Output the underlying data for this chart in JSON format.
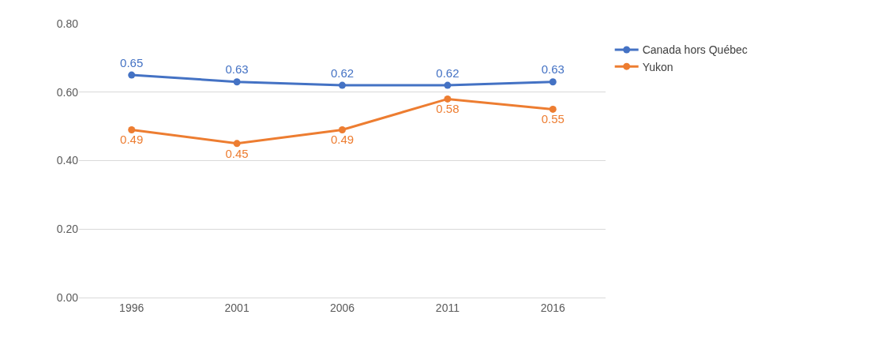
{
  "chart_data": {
    "type": "line",
    "categories": [
      "1996",
      "2001",
      "2006",
      "2011",
      "2016"
    ],
    "series": [
      {
        "name": "Canada hors Québec",
        "color": "#4472c4",
        "values": [
          0.65,
          0.63,
          0.62,
          0.62,
          0.63
        ]
      },
      {
        "name": "Yukon",
        "color": "#ed7d31",
        "values": [
          0.49,
          0.45,
          0.49,
          0.58,
          0.55
        ]
      }
    ],
    "ylim": [
      0,
      0.8
    ],
    "yticks": [
      {
        "value": 0,
        "label": "0.00"
      },
      {
        "value": 0.2,
        "label": "0.20"
      },
      {
        "value": 0.4,
        "label": "0.40"
      },
      {
        "value": 0.6,
        "label": "0.60"
      },
      {
        "value": 0.8,
        "label": "0.80"
      }
    ],
    "grid": "y",
    "legend": "top right",
    "marker": "circle",
    "line_style": "solid",
    "data_labels": true
  }
}
